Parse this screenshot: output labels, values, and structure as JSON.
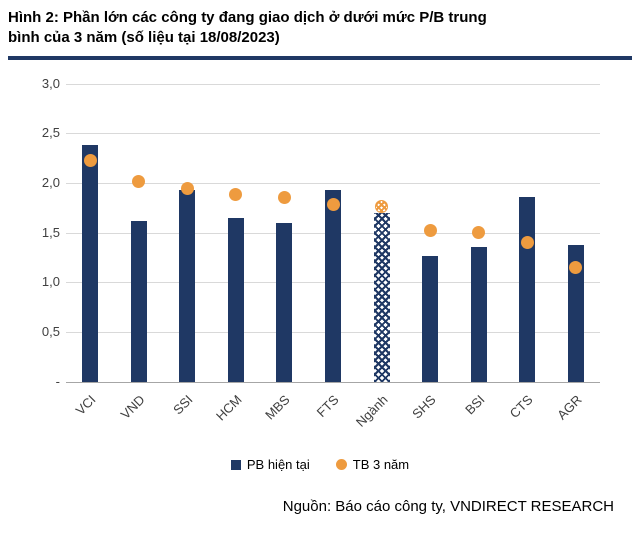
{
  "header": {
    "title_line1": "Hình 2: Phần lớn các công ty đang giao dịch ở dưới mức P/B trung",
    "title_line2": "bình của 3 năm (số liệu tại 18/08/2023)"
  },
  "chart_data": {
    "type": "bar",
    "categories": [
      "VCI",
      "VND",
      "SSI",
      "HCM",
      "MBS",
      "FTS",
      "Ngành",
      "SHS",
      "BSI",
      "CTS",
      "AGR"
    ],
    "series": [
      {
        "name": "PB hiện tại",
        "type": "bar",
        "values": [
          2.38,
          1.62,
          1.93,
          1.65,
          1.6,
          1.93,
          1.7,
          1.26,
          1.35,
          1.86,
          1.37
        ]
      },
      {
        "name": "TB 3 năm",
        "type": "scatter",
        "values": [
          2.22,
          2.01,
          1.94,
          1.88,
          1.85,
          1.78,
          1.76,
          1.52,
          1.5,
          1.4,
          1.15
        ]
      }
    ],
    "hatched_category": "Ngành",
    "title": "Hình 2: Phần lớn các công ty đang giao dịch ở dưới mức P/B trung bình của 3 năm (số liệu tại 18/08/2023)",
    "xlabel": "",
    "ylabel": "",
    "ylim": [
      0,
      3
    ],
    "ytick_step": 0.5,
    "ytick_labels": [
      "-",
      "0,5",
      "1,0",
      "1,5",
      "2,0",
      "2,5",
      "3,0"
    ],
    "grid": true,
    "legend_position": "bottom",
    "colors": {
      "bar": "#1F3864",
      "dot": "#EE9B3F"
    }
  },
  "footer": {
    "source": "Nguồn: Báo cáo công ty, VNDIRECT RESEARCH"
  }
}
